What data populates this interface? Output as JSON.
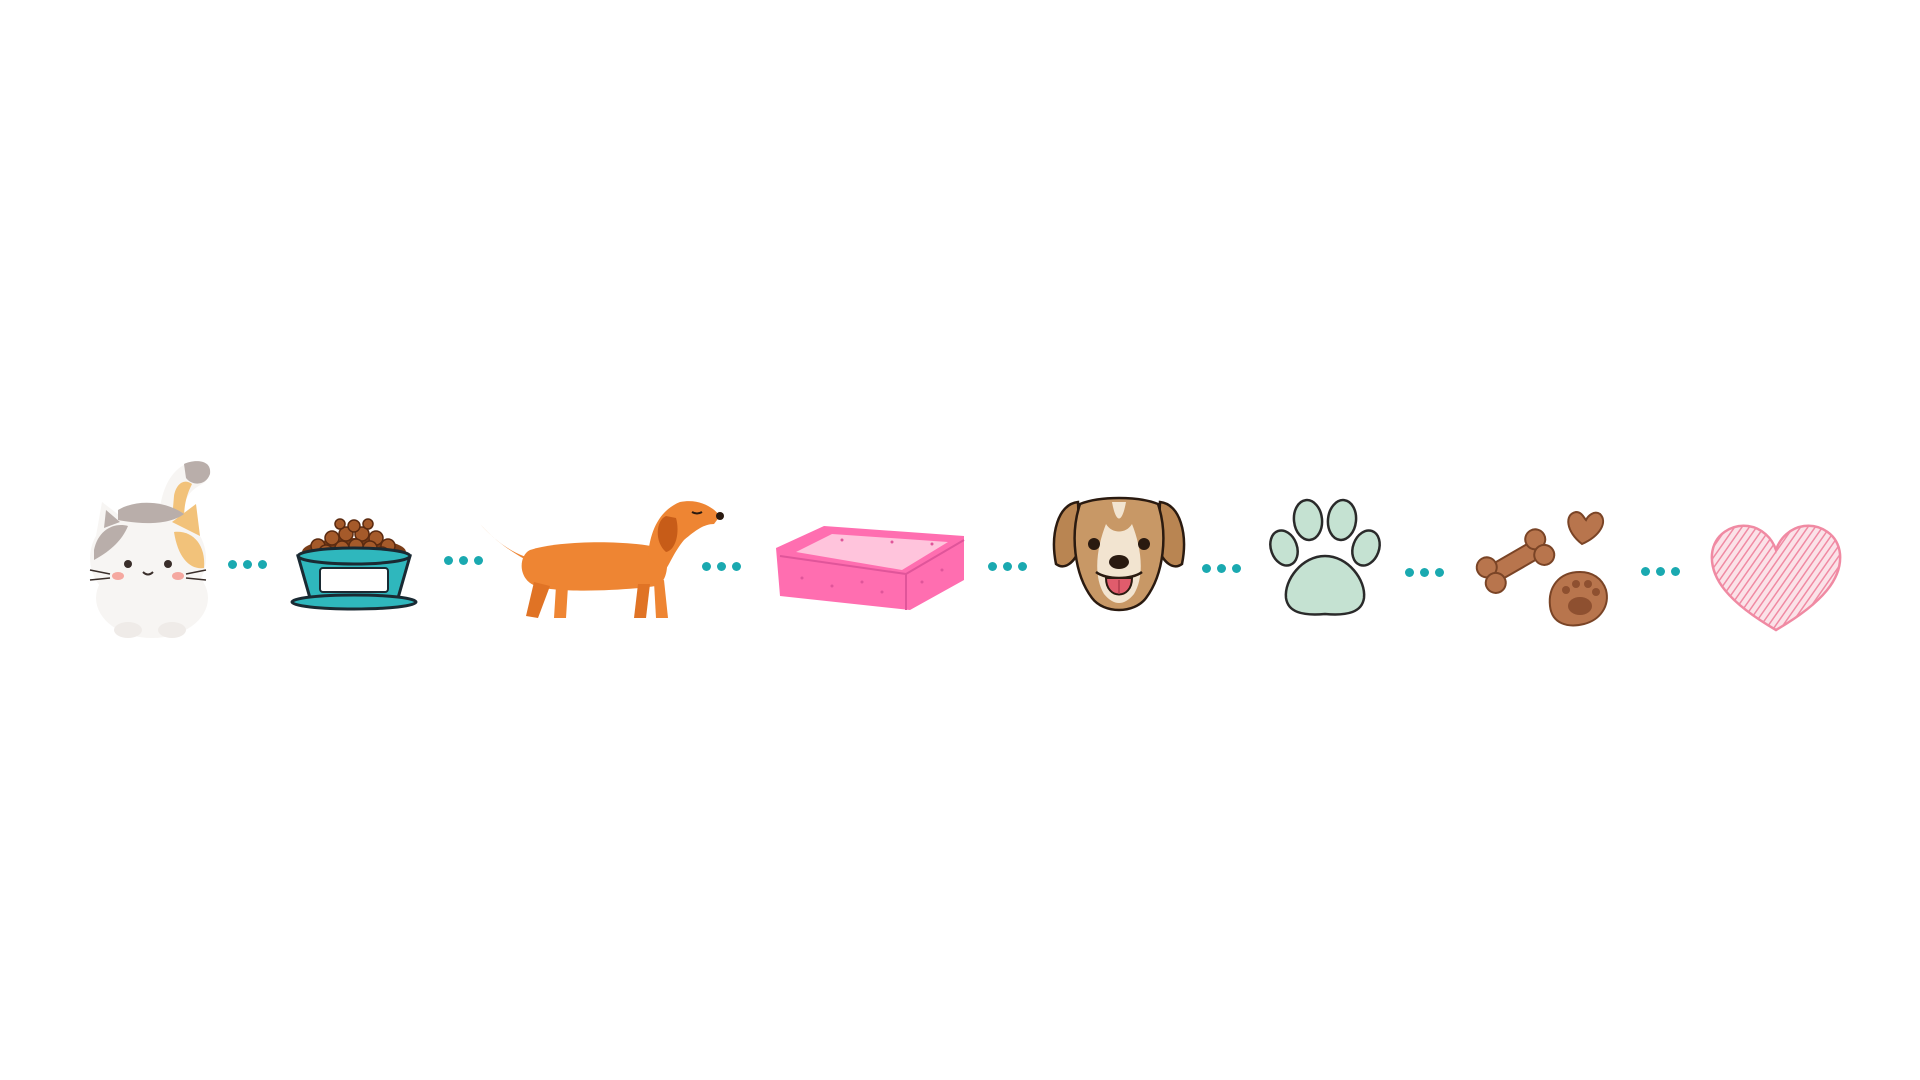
{
  "colors": {
    "background": "#ffffff",
    "connector_dot": "#1aa9b0",
    "cat_fur": "#f7f5f3",
    "cat_patch_gray": "#b9aeaa",
    "cat_patch_orange": "#f2c27a",
    "bowl": "#2fb7bd",
    "kibble": "#a55a2a",
    "dachshund": "#ee8533",
    "bed_outer": "#ff6eb0",
    "bed_inner": "#ffc4dc",
    "dog_face": "#c89866",
    "dog_muzzle": "#f2e4d0",
    "dog_tongue": "#e05c6c",
    "paw": "#c5e2d2",
    "treats": "#b8754d",
    "heart": "#f08aa3"
  },
  "sequence": [
    {
      "name": "cat",
      "icon": "cat-icon"
    },
    {
      "name": "food-bowl",
      "icon": "food-bowl-icon"
    },
    {
      "name": "dachshund",
      "icon": "dachshund-icon"
    },
    {
      "name": "pet-bed",
      "icon": "pet-bed-icon"
    },
    {
      "name": "dog-face",
      "icon": "dog-face-icon"
    },
    {
      "name": "paw-print",
      "icon": "paw-print-icon"
    },
    {
      "name": "dog-treats",
      "icon": "dog-treats-icon"
    },
    {
      "name": "heart",
      "icon": "heart-icon"
    }
  ]
}
